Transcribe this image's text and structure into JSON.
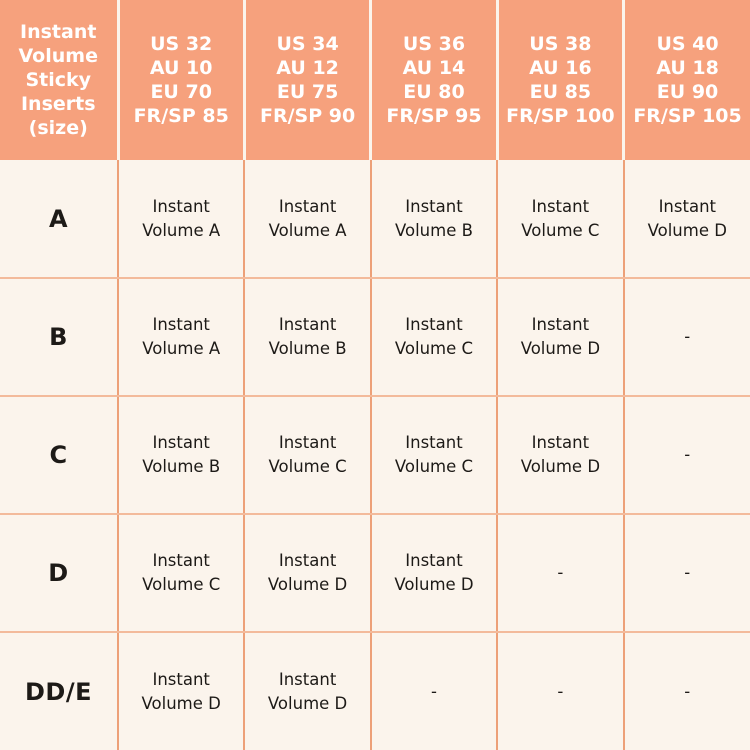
{
  "colors": {
    "header_bg": "#F6A17D",
    "body_bg": "#FBF4EC",
    "grid_vertical": "#EDA078",
    "grid_horizontal": "#F3BA9B",
    "header_text": "#FFFFFF",
    "body_text": "#1D1A17"
  },
  "header": {
    "corner": "Instant\nVolume\nSticky\nInserts\n(size)",
    "sizes": [
      "US 32\nAU 10\nEU 70\nFR/SP 85",
      "US 34\nAU 12\nEU 75\nFR/SP 90",
      "US 36\nAU 14\nEU 80\nFR/SP 95",
      "US 38\nAU 16\nEU 85\nFR/SP 100",
      "US 40\nAU 18\nEU 90\nFR/SP 105"
    ]
  },
  "rows": [
    {
      "label": "A",
      "cells": [
        "Instant\nVolume A",
        "Instant\nVolume A",
        "Instant\nVolume B",
        "Instant\nVolume C",
        "Instant\nVolume D"
      ]
    },
    {
      "label": "B",
      "cells": [
        "Instant\nVolume A",
        "Instant\nVolume B",
        "Instant\nVolume C",
        "Instant\nVolume D",
        "-"
      ]
    },
    {
      "label": "C",
      "cells": [
        "Instant\nVolume B",
        "Instant\nVolume C",
        "Instant\nVolume C",
        "Instant\nVolume D",
        "-"
      ]
    },
    {
      "label": "D",
      "cells": [
        "Instant\nVolume C",
        "Instant\nVolume D",
        "Instant\nVolume D",
        "-",
        "-"
      ]
    },
    {
      "label": "DD/E",
      "cells": [
        "Instant\nVolume D",
        "Instant\nVolume D",
        "-",
        "-",
        "-"
      ]
    }
  ],
  "chart_data": {
    "type": "table",
    "title": "Instant Volume Sticky Inserts (size)",
    "columns": [
      "Instant Volume Sticky Inserts (size)",
      "US 32 / AU 10 / EU 70 / FR-SP 85",
      "US 34 / AU 12 / EU 75 / FR-SP 90",
      "US 36 / AU 14 / EU 80 / FR-SP 95",
      "US 38 / AU 16 / EU 85 / FR-SP 100",
      "US 40 / AU 18 / EU 90 / FR-SP 105"
    ],
    "rows": [
      [
        "A",
        "Instant Volume A",
        "Instant Volume A",
        "Instant Volume B",
        "Instant Volume C",
        "Instant Volume D"
      ],
      [
        "B",
        "Instant Volume A",
        "Instant Volume B",
        "Instant Volume C",
        "Instant Volume D",
        "-"
      ],
      [
        "C",
        "Instant Volume B",
        "Instant Volume C",
        "Instant Volume C",
        "Instant Volume D",
        "-"
      ],
      [
        "D",
        "Instant Volume C",
        "Instant Volume D",
        "Instant Volume D",
        "-",
        "-"
      ],
      [
        "DD/E",
        "Instant Volume D",
        "Instant Volume D",
        "-",
        "-",
        "-"
      ]
    ]
  }
}
